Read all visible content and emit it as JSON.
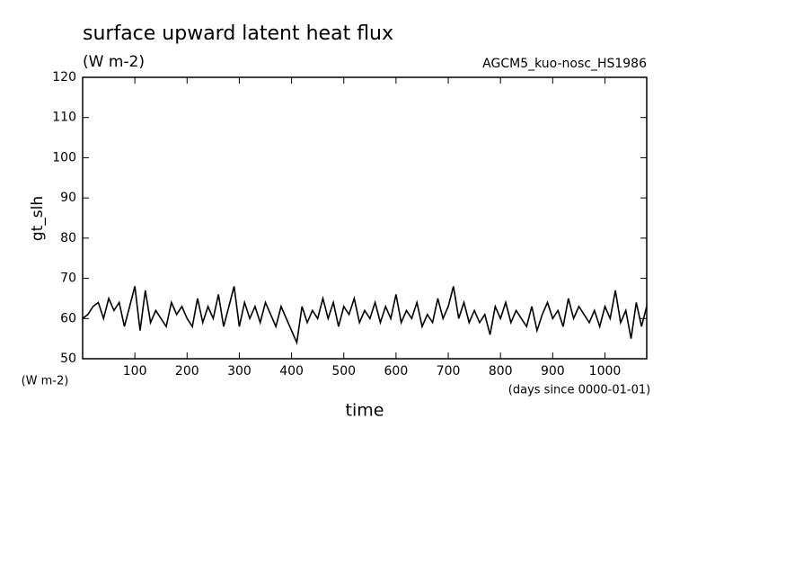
{
  "chart_data": {
    "type": "line",
    "title": "surface upward latent heat flux",
    "units_top": "(W m-2)",
    "run_name": "AGCM5_kuo-nosc_HS1986",
    "y_label": "gt_slh",
    "y_units": "(W m-2)",
    "x_units": "(days since 0000-01-01)",
    "x_label": "time",
    "x": [
      0,
      10,
      20,
      30,
      40,
      50,
      60,
      70,
      80,
      90,
      100,
      110,
      120,
      130,
      140,
      150,
      160,
      170,
      180,
      190,
      200,
      210,
      220,
      230,
      240,
      250,
      260,
      270,
      280,
      290,
      300,
      310,
      320,
      330,
      340,
      350,
      360,
      370,
      380,
      390,
      400,
      410,
      420,
      430,
      440,
      450,
      460,
      470,
      480,
      490,
      500,
      510,
      520,
      530,
      540,
      550,
      560,
      570,
      580,
      590,
      600,
      610,
      620,
      630,
      640,
      650,
      660,
      670,
      680,
      690,
      700,
      710,
      720,
      730,
      740,
      750,
      760,
      770,
      780,
      790,
      800,
      810,
      820,
      830,
      840,
      850,
      860,
      870,
      880,
      890,
      900,
      910,
      920,
      930,
      940,
      950,
      960,
      970,
      980,
      990,
      1000,
      1010,
      1020,
      1030,
      1040,
      1050,
      1060,
      1070,
      1080
    ],
    "series": [
      {
        "name": "gt_slh",
        "color": "#000000",
        "values": [
          60,
          61,
          63,
          64,
          60,
          65,
          62,
          64,
          58,
          63,
          68,
          57,
          67,
          59,
          62,
          60,
          58,
          64,
          61,
          63,
          60,
          58,
          65,
          59,
          63,
          60,
          66,
          58,
          63,
          68,
          58,
          64,
          60,
          63,
          59,
          64,
          61,
          58,
          63,
          60,
          57,
          54,
          63,
          59,
          62,
          60,
          65,
          60,
          64,
          58,
          63,
          61,
          65,
          59,
          62,
          60,
          64,
          59,
          63,
          60,
          66,
          59,
          62,
          60,
          64,
          58,
          61,
          59,
          65,
          60,
          63,
          68,
          60,
          64,
          59,
          62,
          59,
          61,
          56,
          63,
          60,
          64,
          59,
          62,
          60,
          58,
          63,
          57,
          61,
          64,
          60,
          62,
          58,
          65,
          60,
          63,
          61,
          59,
          62,
          58,
          63,
          60,
          67,
          59,
          62,
          55,
          64,
          58,
          63
        ]
      }
    ],
    "xlim": [
      0,
      1080
    ],
    "ylim": [
      50,
      120
    ],
    "xticks": [
      100,
      200,
      300,
      400,
      500,
      600,
      700,
      800,
      900,
      1000
    ],
    "yticks": [
      50,
      60,
      70,
      80,
      90,
      100,
      110,
      120
    ]
  }
}
